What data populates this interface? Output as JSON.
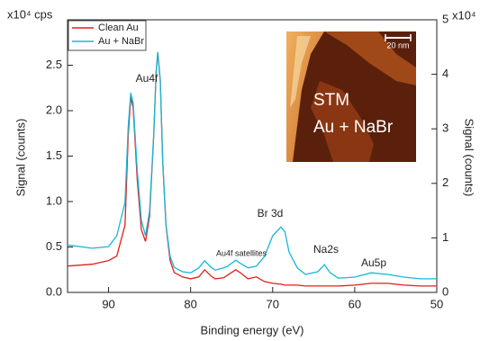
{
  "chart_data": {
    "type": "line",
    "x_label": "Binding energy (eV)",
    "y_label": "Signal (counts)",
    "y2_label": "Signal (counts)",
    "y_unit": "x10⁴ cps",
    "y2_unit": "x10⁴",
    "xlim": [
      95,
      50
    ],
    "xticks": [
      90,
      80,
      70,
      60,
      50
    ],
    "ylim": [
      0,
      3
    ],
    "yticks": [
      {
        "value": 0,
        "label": "0.0"
      },
      0.5,
      {
        "value": 1,
        "label": "1.0"
      },
      1.5,
      {
        "value": 2,
        "label": "2.0"
      },
      2.5
    ],
    "y2lim": [
      0,
      5
    ],
    "y2ticks": [
      0,
      1,
      2,
      3,
      4,
      5
    ],
    "legend": "top-left",
    "x": [
      95,
      92,
      90,
      89,
      88,
      87.6,
      87.3,
      87,
      86.5,
      86,
      85.5,
      85,
      84.5,
      84.2,
      84,
      83.7,
      83.4,
      83,
      82.5,
      82,
      81,
      80,
      79,
      78.3,
      77.5,
      77,
      76,
      75.5,
      74.5,
      74,
      73,
      72,
      71,
      70,
      69,
      68.5,
      68,
      67,
      66,
      64.5,
      63.7,
      63,
      62,
      60,
      58,
      56,
      54,
      52,
      50
    ],
    "series": [
      {
        "name": "Clean Au",
        "color": "#e0201b",
        "axis": "y",
        "values": [
          0.29,
          0.31,
          0.35,
          0.4,
          0.74,
          1.73,
          2.15,
          2.03,
          1.24,
          0.69,
          0.56,
          0.84,
          1.73,
          2.43,
          2.64,
          2.33,
          1.44,
          0.74,
          0.35,
          0.22,
          0.17,
          0.15,
          0.17,
          0.25,
          0.18,
          0.15,
          0.16,
          0.19,
          0.25,
          0.22,
          0.15,
          0.17,
          0.12,
          0.1,
          0.09,
          0.08,
          0.08,
          0.08,
          0.07,
          0.07,
          0.07,
          0.07,
          0.07,
          0.08,
          0.1,
          0.1,
          0.08,
          0.07,
          0.07
        ]
      },
      {
        "name": "Au + NaBr",
        "color": "#16b8d8",
        "axis": "y2",
        "values": [
          0.87,
          0.81,
          0.84,
          1.04,
          1.65,
          3.05,
          3.66,
          3.47,
          2.23,
          1.32,
          1.04,
          1.49,
          2.89,
          4.04,
          4.41,
          3.88,
          2.39,
          1.24,
          0.66,
          0.46,
          0.38,
          0.36,
          0.45,
          0.58,
          0.46,
          0.41,
          0.45,
          0.48,
          0.59,
          0.54,
          0.45,
          0.48,
          0.66,
          1.04,
          1.2,
          1.11,
          0.74,
          0.45,
          0.33,
          0.38,
          0.51,
          0.36,
          0.26,
          0.28,
          0.36,
          0.33,
          0.28,
          0.25,
          0.25
        ]
      }
    ],
    "annotations": [
      "Au4f",
      "Au4f satellites",
      "Br 3d",
      "Na2s",
      "Au5p"
    ],
    "inset": {
      "label_lines": [
        "STM",
        "Au + NaBr"
      ],
      "scale_bar": "20 nm"
    }
  }
}
